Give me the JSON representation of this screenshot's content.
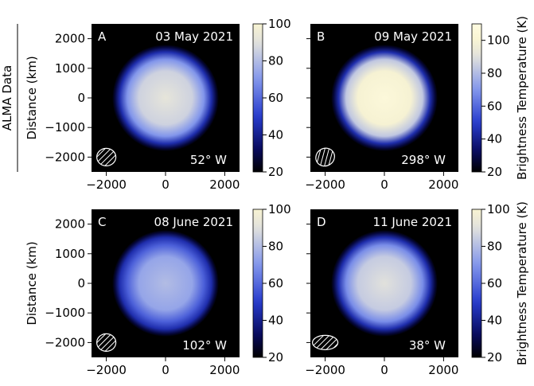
{
  "chart_data": [
    {
      "type": "image",
      "panel": "A",
      "title": "03 May 2021",
      "longitude": "52° W",
      "side_label": "ALMA Data",
      "ylabel": "Distance (km)",
      "xlim": [
        -2500,
        2500
      ],
      "ylim": [
        -2500,
        2500
      ],
      "xticks": [
        {
          "value": -2000,
          "label": "−2000"
        },
        0,
        2000
      ],
      "yticks": [
        {
          "value": -2000,
          "label": "−2000"
        },
        {
          "value": -1000,
          "label": "−1000"
        },
        0,
        1000,
        2000
      ],
      "peak_temperature": 92,
      "disk_radius": 1800,
      "colorbar": {
        "lim": [
          20,
          100
        ],
        "ticks": [
          20,
          40,
          60,
          80,
          100
        ]
      }
    },
    {
      "type": "image",
      "panel": "B",
      "title": "09 May 2021",
      "longitude": "298° W",
      "xlim": [
        -2500,
        2500
      ],
      "ylim": [
        -2500,
        2500
      ],
      "xticks": [
        {
          "value": -2000,
          "label": "−2000"
        },
        0,
        2000
      ],
      "yticks": [
        {
          "value": -2000,
          "label": "−2000"
        },
        {
          "value": -1000,
          "label": "−1000"
        },
        0,
        1000,
        2000
      ],
      "peak_temperature": 105,
      "disk_radius": 1800,
      "colorbar": {
        "lim": [
          20,
          110
        ],
        "ticks": [
          20,
          40,
          60,
          80,
          100
        ],
        "label": "Brightness Temperature (K)"
      }
    },
    {
      "type": "image",
      "panel": "C",
      "title": "08 June 2021",
      "longitude": "102° W",
      "ylabel": "Distance (km)",
      "xlim": [
        -2500,
        2500
      ],
      "ylim": [
        -2500,
        2500
      ],
      "xticks": [
        {
          "value": -2000,
          "label": "−2000"
        },
        0,
        2000
      ],
      "yticks": [
        {
          "value": -2000,
          "label": "−2000"
        },
        {
          "value": -1000,
          "label": "−1000"
        },
        0,
        1000,
        2000
      ],
      "peak_temperature": 80,
      "disk_radius": 1800,
      "colorbar": {
        "lim": [
          20,
          100
        ],
        "ticks": [
          20,
          40,
          60,
          80,
          100
        ]
      }
    },
    {
      "type": "image",
      "panel": "D",
      "title": "11 June 2021",
      "longitude": "38° W",
      "xlim": [
        -2500,
        2500
      ],
      "ylim": [
        -2500,
        2500
      ],
      "xticks": [
        {
          "value": -2000,
          "label": "−2000"
        },
        0,
        2000
      ],
      "yticks": [
        {
          "value": -2000,
          "label": "−2000"
        },
        {
          "value": -1000,
          "label": "−1000"
        },
        0,
        1000,
        2000
      ],
      "peak_temperature": 90,
      "disk_radius": 1800,
      "colorbar": {
        "lim": [
          20,
          100
        ],
        "ticks": [
          20,
          40,
          60,
          80,
          100
        ],
        "label": "Brightness Temperature (K)"
      }
    }
  ]
}
